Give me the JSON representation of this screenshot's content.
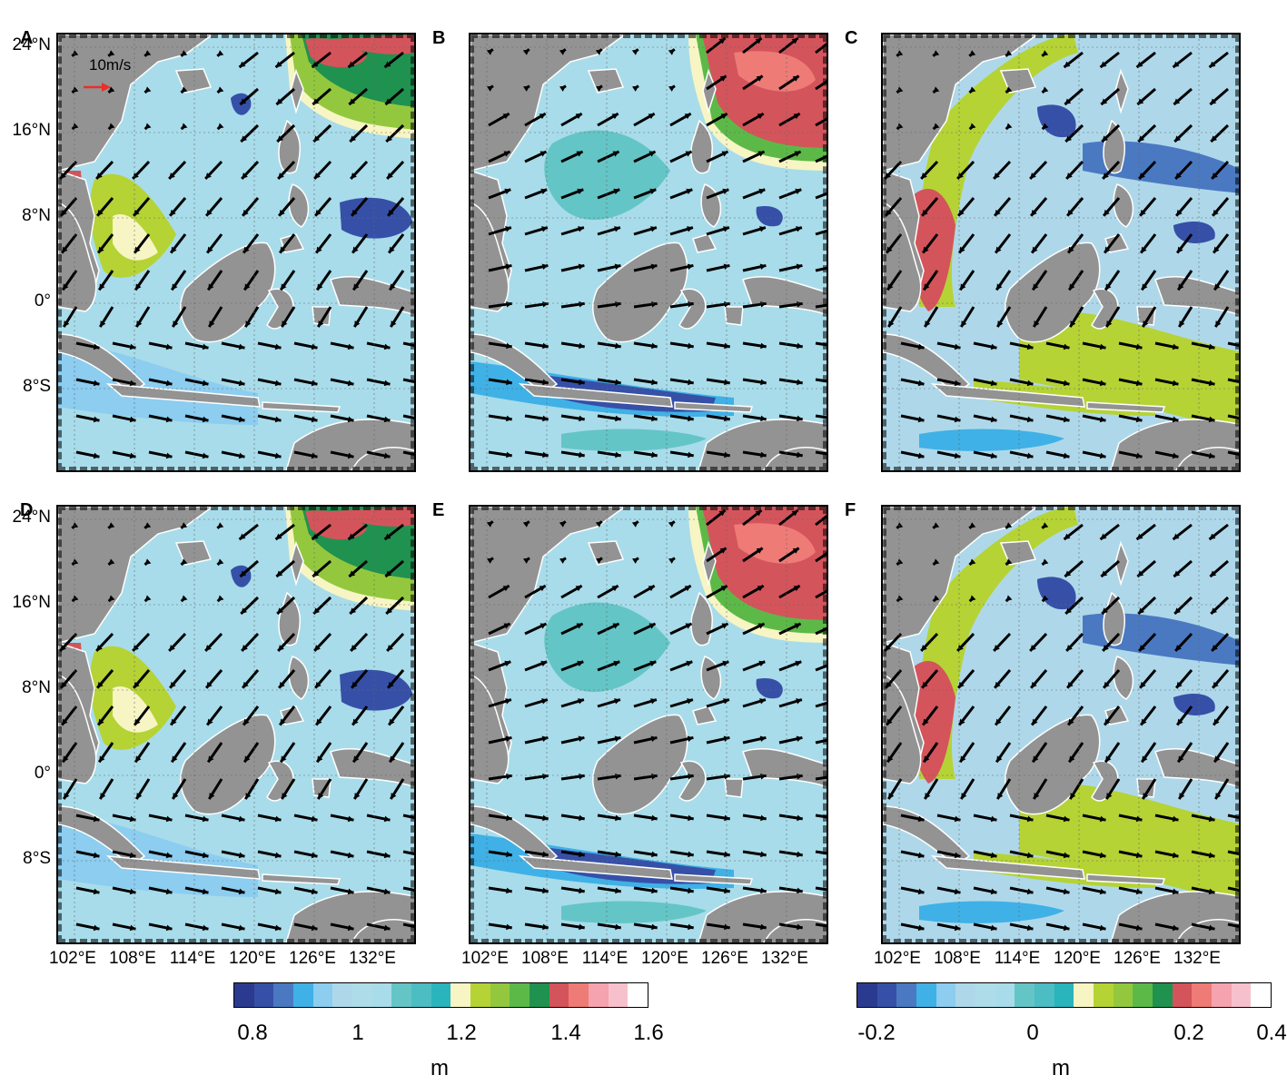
{
  "panels": [
    {
      "label": "A",
      "scheme": "abs",
      "variant": "winter"
    },
    {
      "label": "B",
      "scheme": "abs",
      "variant": "summer"
    },
    {
      "label": "C",
      "scheme": "diff",
      "variant": "winter"
    },
    {
      "label": "D",
      "scheme": "abs",
      "variant": "winter"
    },
    {
      "label": "E",
      "scheme": "abs",
      "variant": "summer"
    },
    {
      "label": "F",
      "scheme": "diff",
      "variant": "winter"
    }
  ],
  "lat_ticks": [
    "24°N",
    "16°N",
    "8°N",
    "0°",
    "8°S"
  ],
  "lon_ticks": [
    "102°E",
    "108°E",
    "114°E",
    "120°E",
    "126°E",
    "132°E"
  ],
  "wind_scale": {
    "label": "10m/s",
    "arrow_color": "#e8302a"
  },
  "colorbar_left": {
    "ticks": [
      "0.8",
      "1",
      "1.2",
      "1.4",
      "1.6"
    ],
    "unit": "m",
    "colors": [
      "#2a3b8f",
      "#3650a8",
      "#4a79c2",
      "#3fb1e6",
      "#8ccdf0",
      "#aed8ea",
      "#aedde9",
      "#a8dcea",
      "#64c5c6",
      "#4bbdc3",
      "#2ab4bc",
      "#f7f5c4",
      "#b5d334",
      "#93c83e",
      "#5cb948",
      "#1f9250",
      "#d4545b",
      "#ee7b76",
      "#f5a3ae",
      "#f6c1cc",
      "#ffffff"
    ]
  },
  "colorbar_right": {
    "ticks": [
      "-0.2",
      "0",
      "0.2",
      "0.4"
    ],
    "unit": "m",
    "colors": [
      "#2a3b8f",
      "#3650a8",
      "#4a79c2",
      "#3fb1e6",
      "#8ccdf0",
      "#aed8ea",
      "#aedde9",
      "#a8dcea",
      "#64c5c6",
      "#4bbdc3",
      "#2ab4bc",
      "#f7f5c4",
      "#b5d334",
      "#93c83e",
      "#5cb948",
      "#1f9250",
      "#d4545b",
      "#ee7b76",
      "#f5a3ae",
      "#f6c1cc",
      "#ffffff"
    ]
  },
  "colors": {
    "land": "#939393",
    "frame": "#000000",
    "arrow": "#000000"
  }
}
